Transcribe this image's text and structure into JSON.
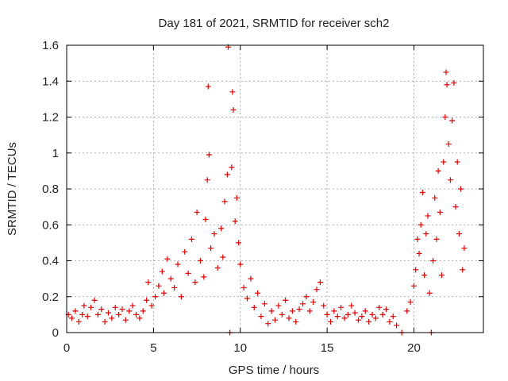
{
  "chart_data": {
    "type": "scatter",
    "title": "Day 181 of 2021, SRMTID for receiver sch2",
    "xlabel": "GPS time / hours",
    "ylabel": "SRMTID / TECUs",
    "xlim": [
      0,
      24
    ],
    "ylim": [
      0,
      1.6
    ],
    "xticks": [
      0,
      5,
      10,
      15,
      20
    ],
    "xtick_labels": [
      "0",
      "5",
      "10",
      "15",
      "20"
    ],
    "yticks": [
      0,
      0.2,
      0.4,
      0.6,
      0.8,
      1.0,
      1.2,
      1.4,
      1.6
    ],
    "ytick_labels": [
      "0",
      "0.2",
      "0.4",
      "0.6",
      "0.8",
      "1",
      "1.2",
      "1.4",
      "1.6"
    ],
    "grid": true,
    "marker": "plus",
    "color": "#e00000",
    "series": [
      {
        "name": "SRMTID",
        "points": [
          [
            0.1,
            0.1
          ],
          [
            0.3,
            0.08
          ],
          [
            0.5,
            0.12
          ],
          [
            0.7,
            0.06
          ],
          [
            0.9,
            0.1
          ],
          [
            1.0,
            0.15
          ],
          [
            1.2,
            0.09
          ],
          [
            1.4,
            0.14
          ],
          [
            1.6,
            0.18
          ],
          [
            1.8,
            0.1
          ],
          [
            2.0,
            0.13
          ],
          [
            2.2,
            0.06
          ],
          [
            2.4,
            0.11
          ],
          [
            2.6,
            0.08
          ],
          [
            2.8,
            0.14
          ],
          [
            3.0,
            0.1
          ],
          [
            3.2,
            0.13
          ],
          [
            3.4,
            0.07
          ],
          [
            3.6,
            0.12
          ],
          [
            3.8,
            0.15
          ],
          [
            4.0,
            0.1
          ],
          [
            4.2,
            0.08
          ],
          [
            4.4,
            0.12
          ],
          [
            4.6,
            0.18
          ],
          [
            4.7,
            0.28
          ],
          [
            4.9,
            0.15
          ],
          [
            5.1,
            0.2
          ],
          [
            5.3,
            0.26
          ],
          [
            5.5,
            0.34
          ],
          [
            5.6,
            0.22
          ],
          [
            5.8,
            0.41
          ],
          [
            6.0,
            0.3
          ],
          [
            6.2,
            0.25
          ],
          [
            6.4,
            0.38
          ],
          [
            6.6,
            0.2
          ],
          [
            6.8,
            0.45
          ],
          [
            7.0,
            0.33
          ],
          [
            7.2,
            0.52
          ],
          [
            7.4,
            0.28
          ],
          [
            7.5,
            0.67
          ],
          [
            7.7,
            0.4
          ],
          [
            7.9,
            0.31
          ],
          [
            8.0,
            0.63
          ],
          [
            8.1,
            0.85
          ],
          [
            8.15,
            1.37
          ],
          [
            8.2,
            0.99
          ],
          [
            8.3,
            0.47
          ],
          [
            8.5,
            0.55
          ],
          [
            8.7,
            0.36
          ],
          [
            8.9,
            0.58
          ],
          [
            9.0,
            0.42
          ],
          [
            9.1,
            0.73
          ],
          [
            9.25,
            0.88
          ],
          [
            9.3,
            1.59
          ],
          [
            9.4,
            0.0
          ],
          [
            9.5,
            0.92
          ],
          [
            9.55,
            1.34
          ],
          [
            9.6,
            1.24
          ],
          [
            9.7,
            0.62
          ],
          [
            9.8,
            0.75
          ],
          [
            9.9,
            0.5
          ],
          [
            10.0,
            0.38
          ],
          [
            10.2,
            0.25
          ],
          [
            10.4,
            0.19
          ],
          [
            10.6,
            0.3
          ],
          [
            10.8,
            0.14
          ],
          [
            11.0,
            0.22
          ],
          [
            11.2,
            0.09
          ],
          [
            11.4,
            0.16
          ],
          [
            11.6,
            0.05
          ],
          [
            11.8,
            0.12
          ],
          [
            12.0,
            0.07
          ],
          [
            12.2,
            0.15
          ],
          [
            12.4,
            0.1
          ],
          [
            12.6,
            0.18
          ],
          [
            12.8,
            0.08
          ],
          [
            13.0,
            0.12
          ],
          [
            13.2,
            0.06
          ],
          [
            13.4,
            0.13
          ],
          [
            13.6,
            0.16
          ],
          [
            13.8,
            0.2
          ],
          [
            14.0,
            0.12
          ],
          [
            14.2,
            0.17
          ],
          [
            14.4,
            0.24
          ],
          [
            14.6,
            0.28
          ],
          [
            14.8,
            0.15
          ],
          [
            15.0,
            0.1
          ],
          [
            15.2,
            0.06
          ],
          [
            15.4,
            0.12
          ],
          [
            15.6,
            0.09
          ],
          [
            15.8,
            0.14
          ],
          [
            16.0,
            0.08
          ],
          [
            16.2,
            0.1
          ],
          [
            16.4,
            0.15
          ],
          [
            16.6,
            0.11
          ],
          [
            16.8,
            0.07
          ],
          [
            17.0,
            0.09
          ],
          [
            17.2,
            0.12
          ],
          [
            17.4,
            0.06
          ],
          [
            17.6,
            0.1
          ],
          [
            17.8,
            0.08
          ],
          [
            18.0,
            0.14
          ],
          [
            18.2,
            0.1
          ],
          [
            18.4,
            0.13
          ],
          [
            18.6,
            0.06
          ],
          [
            18.8,
            0.09
          ],
          [
            19.0,
            0.04
          ],
          [
            19.3,
            0.0
          ],
          [
            19.6,
            0.12
          ],
          [
            19.8,
            0.17
          ],
          [
            20.0,
            0.26
          ],
          [
            20.1,
            0.35
          ],
          [
            20.2,
            0.52
          ],
          [
            20.3,
            0.44
          ],
          [
            20.4,
            0.6
          ],
          [
            20.5,
            0.78
          ],
          [
            20.6,
            0.32
          ],
          [
            20.7,
            0.55
          ],
          [
            20.8,
            0.65
          ],
          [
            20.9,
            0.22
          ],
          [
            21.0,
            0.0
          ],
          [
            21.1,
            0.4
          ],
          [
            21.2,
            0.75
          ],
          [
            21.3,
            0.52
          ],
          [
            21.4,
            0.9
          ],
          [
            21.5,
            0.67
          ],
          [
            21.6,
            0.32
          ],
          [
            21.7,
            0.95
          ],
          [
            21.8,
            1.2
          ],
          [
            21.85,
            1.45
          ],
          [
            21.9,
            1.38
          ],
          [
            22.0,
            1.05
          ],
          [
            22.1,
            0.85
          ],
          [
            22.2,
            1.18
          ],
          [
            22.3,
            1.39
          ],
          [
            22.4,
            0.7
          ],
          [
            22.5,
            0.95
          ],
          [
            22.6,
            0.55
          ],
          [
            22.7,
            0.8
          ],
          [
            22.8,
            0.35
          ],
          [
            22.9,
            0.47
          ]
        ]
      }
    ]
  }
}
